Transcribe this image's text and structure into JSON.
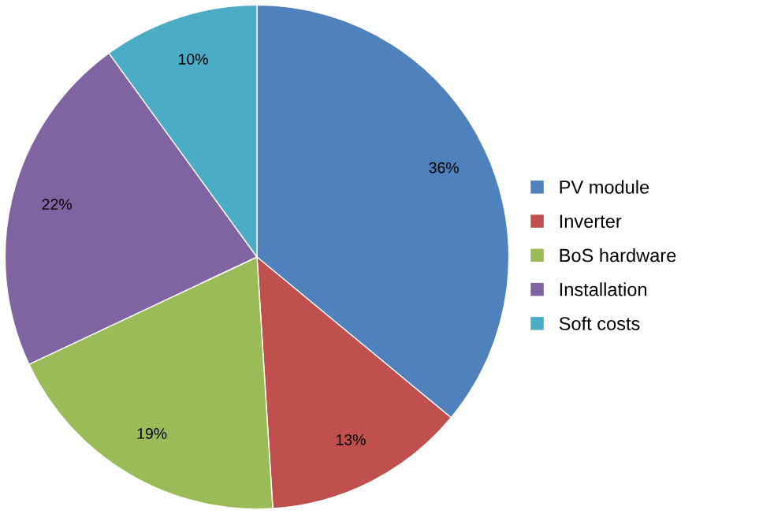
{
  "chart_data": {
    "type": "pie",
    "categories": [
      "PV module",
      "Inverter",
      "BoS hardware",
      "Installation",
      "Soft costs"
    ],
    "values": [
      36,
      13,
      19,
      22,
      10
    ],
    "colors": [
      "#4f81bd",
      "#c0504d",
      "#9bbb59",
      "#8064a2",
      "#4bacc6"
    ],
    "value_labels": [
      "36%",
      "13%",
      "19%",
      "22%",
      "10%"
    ],
    "legend": "right"
  }
}
